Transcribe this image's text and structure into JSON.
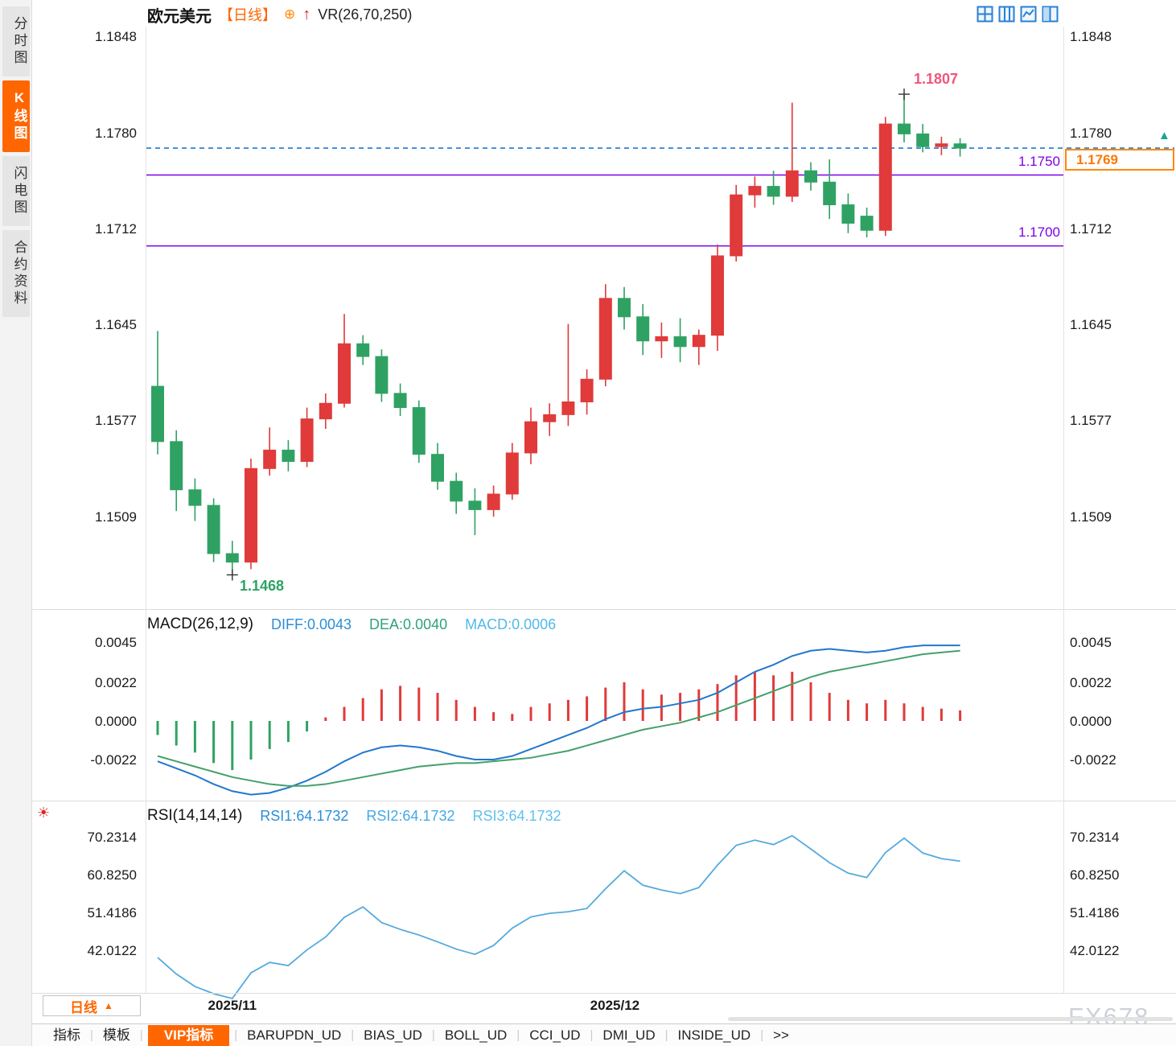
{
  "header": {
    "symbol": "欧元美元",
    "period_tag": "【日线】",
    "overlay_indicator": "VR(26,70,250)"
  },
  "icons": {
    "add": "⊕",
    "up_arrow": "↑",
    "sun": "☀",
    "latest_marker": "▲",
    "period_dropdown_arrow": "▲"
  },
  "sidebar": {
    "tabs": [
      {
        "label": "分时图",
        "active": false
      },
      {
        "label": "K线图",
        "active": true
      },
      {
        "label": "闪电图",
        "active": false
      },
      {
        "label": "合约资料",
        "active": false
      }
    ]
  },
  "main_chart": {
    "y_axis_labels": [
      "1.1848",
      "1.1780",
      "1.1712",
      "1.1645",
      "1.1577",
      "1.1509"
    ],
    "levels": {
      "resistance_label": "1.1750",
      "support_label": "1.1700",
      "last_price": "1.1769",
      "high_label": "1.1807",
      "low_label": "1.1468"
    }
  },
  "macd_panel": {
    "title": "MACD(26,12,9)",
    "diff_text": "DIFF:0.0043",
    "dea_text": "DEA:0.0040",
    "macd_text": "MACD:0.0006",
    "y_axis_labels": [
      "0.0045",
      "0.0022",
      "0.0000",
      "-0.0022"
    ]
  },
  "rsi_panel": {
    "title": "RSI(14,14,14)",
    "rsi1_text": "RSI1:64.1732",
    "rsi2_text": "RSI2:64.1732",
    "rsi3_text": "RSI3:64.1732",
    "y_axis_labels": [
      "70.2314",
      "60.8250",
      "51.4186",
      "42.0122"
    ]
  },
  "bottom_bar": {
    "period_button": "日线",
    "tabs": [
      {
        "label": "指标",
        "active": false
      },
      {
        "label": "模板",
        "active": false
      },
      {
        "label": "VIP指标",
        "active": true
      },
      {
        "label": "BARUPDN_UD",
        "active": false
      },
      {
        "label": "BIAS_UD",
        "active": false
      },
      {
        "label": "BOLL_UD",
        "active": false
      },
      {
        "label": "CCI_UD",
        "active": false
      },
      {
        "label": "DMI_UD",
        "active": false
      },
      {
        "label": "INSIDE_UD",
        "active": false
      },
      {
        "label": ">>",
        "active": false
      }
    ],
    "watermark": "FX678"
  },
  "colors": {
    "up": "#e03a3a",
    "down": "#2fa263",
    "accent_orange": "#ff6600",
    "purple_level": "#7d00e6",
    "price_line_blue": "#1f7ad0",
    "diff_blue": "#2277cc",
    "dea_green": "#44a06a",
    "rsi_blue": "#55aadd",
    "high_label_pink": "#f0557d",
    "icon_blue": "#2a7fd4"
  },
  "chart_data": [
    {
      "type": "candlestick",
      "title": "欧元美元 日线",
      "ylim": [
        1.1445,
        1.1853
      ],
      "y_ticks": [
        1.1848,
        1.178,
        1.1712,
        1.1645,
        1.1577,
        1.1509
      ],
      "x_ticks": [
        "2025/11",
        "2025/12"
      ],
      "x_tick_positions": [
        4,
        24.5
      ],
      "high_index": 40,
      "low_index": 4,
      "levels": {
        "last": 1.1769,
        "h_line_1": 1.175,
        "h_line_2": 1.17,
        "high": 1.1807,
        "low": 1.1468
      },
      "ohlc": [
        [
          1.1601,
          1.164,
          1.1553,
          1.1562
        ],
        [
          1.1562,
          1.157,
          1.1513,
          1.1528
        ],
        [
          1.1528,
          1.1536,
          1.1506,
          1.1517
        ],
        [
          1.1517,
          1.1522,
          1.1477,
          1.1483
        ],
        [
          1.1483,
          1.1492,
          1.1468,
          1.1477
        ],
        [
          1.1477,
          1.155,
          1.1472,
          1.1543
        ],
        [
          1.1543,
          1.1572,
          1.1538,
          1.1556
        ],
        [
          1.1556,
          1.1563,
          1.1541,
          1.1548
        ],
        [
          1.1548,
          1.1586,
          1.1544,
          1.1578
        ],
        [
          1.1578,
          1.1596,
          1.1571,
          1.1589
        ],
        [
          1.1589,
          1.1652,
          1.1586,
          1.1631
        ],
        [
          1.1631,
          1.1637,
          1.1616,
          1.1622
        ],
        [
          1.1622,
          1.1627,
          1.159,
          1.1596
        ],
        [
          1.1596,
          1.1603,
          1.158,
          1.1586
        ],
        [
          1.1586,
          1.1591,
          1.1547,
          1.1553
        ],
        [
          1.1553,
          1.1561,
          1.1528,
          1.1534
        ],
        [
          1.1534,
          1.154,
          1.1511,
          1.152
        ],
        [
          1.152,
          1.1529,
          1.1496,
          1.1514
        ],
        [
          1.1514,
          1.1531,
          1.1509,
          1.1525
        ],
        [
          1.1525,
          1.1561,
          1.1521,
          1.1554
        ],
        [
          1.1554,
          1.1586,
          1.1546,
          1.1576
        ],
        [
          1.1576,
          1.1589,
          1.1566,
          1.1581
        ],
        [
          1.1581,
          1.1645,
          1.1573,
          1.159
        ],
        [
          1.159,
          1.1613,
          1.1581,
          1.1606
        ],
        [
          1.1606,
          1.1673,
          1.1601,
          1.1663
        ],
        [
          1.1663,
          1.1671,
          1.1641,
          1.165
        ],
        [
          1.165,
          1.1659,
          1.1623,
          1.1633
        ],
        [
          1.1633,
          1.1646,
          1.1621,
          1.1636
        ],
        [
          1.1636,
          1.1649,
          1.1618,
          1.1629
        ],
        [
          1.1629,
          1.1641,
          1.1616,
          1.1637
        ],
        [
          1.1637,
          1.1701,
          1.1626,
          1.1693
        ],
        [
          1.1693,
          1.1743,
          1.1689,
          1.1736
        ],
        [
          1.1736,
          1.1749,
          1.1727,
          1.1742
        ],
        [
          1.1742,
          1.1753,
          1.1729,
          1.1735
        ],
        [
          1.1735,
          1.1801,
          1.1731,
          1.1753
        ],
        [
          1.1753,
          1.1759,
          1.1739,
          1.1745
        ],
        [
          1.1745,
          1.1761,
          1.1719,
          1.1729
        ],
        [
          1.1729,
          1.1737,
          1.1709,
          1.1716
        ],
        [
          1.1721,
          1.1727,
          1.1706,
          1.1711
        ],
        [
          1.1711,
          1.1791,
          1.1707,
          1.1786
        ],
        [
          1.1786,
          1.1807,
          1.1773,
          1.1779
        ],
        [
          1.1779,
          1.1786,
          1.1766,
          1.177
        ],
        [
          1.177,
          1.1777,
          1.1764,
          1.1772
        ],
        [
          1.1772,
          1.1776,
          1.1763,
          1.1769
        ]
      ]
    },
    {
      "type": "bar+line",
      "title": "MACD(26,12,9)",
      "y_ticks": [
        0.0045,
        0.0022,
        0.0,
        -0.0022
      ],
      "series": [
        {
          "name": "DIFF",
          "values": [
            -0.0023,
            -0.0027,
            -0.0031,
            -0.0036,
            -0.004,
            -0.0042,
            -0.0041,
            -0.0038,
            -0.0034,
            -0.0029,
            -0.0023,
            -0.0018,
            -0.0015,
            -0.0014,
            -0.0015,
            -0.0017,
            -0.002,
            -0.0022,
            -0.0022,
            -0.002,
            -0.0016,
            -0.0012,
            -0.0008,
            -0.0004,
            0.0001,
            0.0005,
            0.0007,
            0.0008,
            0.001,
            0.0012,
            0.0016,
            0.0022,
            0.0028,
            0.0032,
            0.0037,
            0.004,
            0.0041,
            0.004,
            0.0039,
            0.004,
            0.0042,
            0.0043,
            0.0043,
            0.0043
          ]
        },
        {
          "name": "DEA",
          "values": [
            -0.002,
            -0.0023,
            -0.0026,
            -0.0029,
            -0.0032,
            -0.0034,
            -0.0036,
            -0.0037,
            -0.0037,
            -0.0036,
            -0.0034,
            -0.0032,
            -0.003,
            -0.0028,
            -0.0026,
            -0.0025,
            -0.0024,
            -0.0024,
            -0.0023,
            -0.0022,
            -0.0021,
            -0.0019,
            -0.0017,
            -0.0014,
            -0.0011,
            -0.0008,
            -0.0005,
            -0.0003,
            -0.0001,
            0.0002,
            0.0005,
            0.0009,
            0.0013,
            0.0017,
            0.0021,
            0.0025,
            0.0028,
            0.003,
            0.0032,
            0.0034,
            0.0036,
            0.0038,
            0.0039,
            0.004
          ]
        },
        {
          "name": "HIST",
          "values": [
            -0.0008,
            -0.0014,
            -0.0018,
            -0.0024,
            -0.0028,
            -0.0022,
            -0.0016,
            -0.0012,
            -0.0006,
            0.0002,
            0.0008,
            0.0013,
            0.0018,
            0.002,
            0.0019,
            0.0016,
            0.0012,
            0.0008,
            0.0005,
            0.0004,
            0.0008,
            0.001,
            0.0012,
            0.0014,
            0.0019,
            0.0022,
            0.0018,
            0.0015,
            0.0016,
            0.0018,
            0.0021,
            0.0026,
            0.0028,
            0.0026,
            0.0028,
            0.0022,
            0.0016,
            0.0012,
            0.001,
            0.0012,
            0.001,
            0.0008,
            0.0007,
            0.0006
          ]
        }
      ]
    },
    {
      "type": "line",
      "title": "RSI(14,14,14)",
      "y_ticks": [
        70.2314,
        60.825,
        51.4186,
        42.0122
      ],
      "values": [
        40.2,
        36.1,
        33.0,
        31.2,
        30.0,
        36.4,
        39.0,
        38.2,
        42.1,
        45.3,
        50.2,
        52.8,
        48.9,
        47.2,
        45.8,
        44.1,
        42.3,
        41.0,
        43.2,
        47.5,
        50.3,
        51.2,
        51.6,
        52.4,
        57.3,
        61.8,
        58.2,
        57.0,
        56.1,
        57.6,
        63.2,
        68.1,
        69.4,
        68.3,
        70.5,
        67.2,
        63.8,
        61.2,
        60.1,
        66.3,
        69.9,
        66.2,
        64.8,
        64.1732
      ]
    }
  ]
}
